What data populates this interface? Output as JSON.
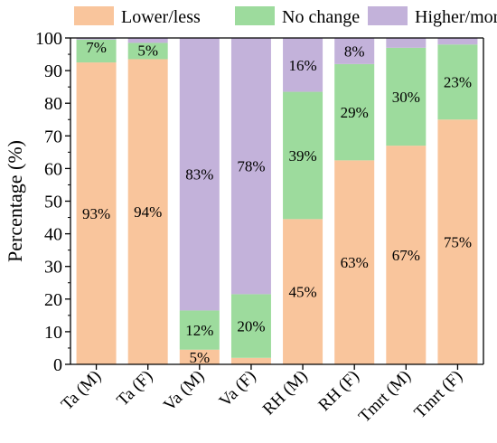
{
  "chart_data": {
    "type": "bar",
    "stacked": true,
    "title": "",
    "xlabel": "",
    "ylabel": "Percentage (%)",
    "ylim": [
      0,
      100
    ],
    "yticks": [
      0,
      10,
      20,
      30,
      40,
      50,
      60,
      70,
      80,
      90,
      100
    ],
    "grid": false,
    "legend_position": "top",
    "categories": [
      "Ta (M)",
      "Ta (F)",
      "Va (M)",
      "Va (F)",
      "RH (M)",
      "RH (F)",
      "Tmrt (M)",
      "Tmrt (F)"
    ],
    "series": [
      {
        "name": "Lower/less",
        "color": "#F9C59C",
        "values": [
          92.5,
          93.5,
          4.5,
          2.0,
          44.5,
          62.5,
          67.0,
          75.0
        ],
        "labels": [
          "93%",
          "94%",
          "5%",
          "",
          "45%",
          "63%",
          "67%",
          "75%"
        ]
      },
      {
        "name": "No change",
        "color": "#9DDB9D",
        "values": [
          7.0,
          5.0,
          12.0,
          19.5,
          39.0,
          29.5,
          30.0,
          23.0
        ],
        "labels": [
          "7%",
          "5%",
          "12%",
          "20%",
          "39%",
          "29%",
          "30%",
          "23%"
        ]
      },
      {
        "name": "Higher/more",
        "color": "#C3B2DA",
        "values": [
          0.5,
          1.5,
          83.5,
          78.5,
          16.5,
          8.0,
          3.0,
          2.0
        ],
        "labels": [
          "",
          "",
          "83%",
          "78%",
          "16%",
          "8%",
          "",
          ""
        ]
      }
    ]
  }
}
